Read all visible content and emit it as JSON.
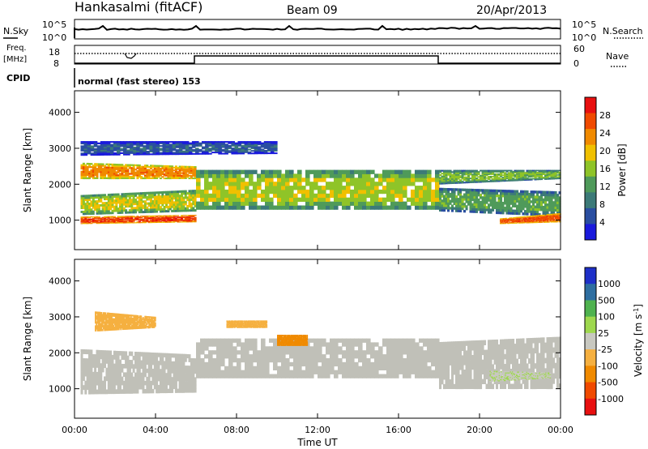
{
  "header": {
    "station": "Hankasalmi (fitACF)",
    "beam": "Beam 09",
    "date": "20/Apr/2013"
  },
  "panels": {
    "nsky": {
      "label": "N.Sky",
      "tick_top": "10^5",
      "tick_bottom": "10^0"
    },
    "nsearch": {
      "label": "N.Search",
      "tick_top": "10^5",
      "tick_bottom": "10^0"
    },
    "freq": {
      "label_line1": "Freq.",
      "label_line2": "[MHz]",
      "tick_top": "18",
      "tick_bottom": "8"
    },
    "nave": {
      "label": "Nave",
      "tick_top": "60",
      "tick_bottom": "0"
    },
    "cpid": {
      "label": "CPID",
      "text": "normal (fast stereo) 153"
    }
  },
  "colors": {
    "power": [
      "#1a1adc",
      "#2a4ea0",
      "#3c7a78",
      "#4f9a5a",
      "#8fc428",
      "#f0c000",
      "#f08a00",
      "#f04a00",
      "#e81010"
    ],
    "velocity": [
      "#e81010",
      "#f04a00",
      "#f08a00",
      "#f5b040",
      "#c8c8c0",
      "#9ed84e",
      "#4fb24f",
      "#2e6ea0",
      "#1e30c8"
    ],
    "ground_scatter": "#c0c0b8"
  },
  "icons": {
    "legend_dotted": "dotted-line-icon"
  },
  "chart_data": [
    {
      "type": "heatmap",
      "title": "",
      "xlabel": "Time UT",
      "ylabel": "Slant Range [km]",
      "xlim": [
        "00:00",
        "24:00"
      ],
      "ylim": [
        180,
        4600
      ],
      "x_ticks": [
        "00:00",
        "04:00",
        "08:00",
        "12:00",
        "16:00",
        "20:00",
        "00:00"
      ],
      "y_ticks": [
        "1000",
        "2000",
        "3000",
        "4000"
      ],
      "colorbar": {
        "label": "Power [dB]",
        "ticks": [
          "4",
          "8",
          "12",
          "16",
          "20",
          "24",
          "28"
        ],
        "range": [
          0,
          30
        ]
      },
      "bands": [
        {
          "t": [
            0.3,
            6.0
          ],
          "r_lo": [
            900,
            950
          ],
          "r_hi": [
            1100,
            1150
          ],
          "value": 26
        },
        {
          "t": [
            0.3,
            6.0
          ],
          "r_lo": [
            1150,
            1250
          ],
          "r_hi": [
            1700,
            1850
          ],
          "value": 17
        },
        {
          "t": [
            0.3,
            6.0
          ],
          "r_lo": [
            2150,
            2150
          ],
          "r_hi": [
            2600,
            2500
          ],
          "value": 22
        },
        {
          "t": [
            6.0,
            18.0
          ],
          "r_lo": [
            1300,
            1300
          ],
          "r_hi": [
            2400,
            2400
          ],
          "value": 16
        },
        {
          "t": [
            18.0,
            24.0
          ],
          "r_lo": [
            1250,
            1100
          ],
          "r_hi": [
            1900,
            1800
          ],
          "value": 12
        },
        {
          "t": [
            21.0,
            24.0
          ],
          "r_lo": [
            900,
            950
          ],
          "r_hi": [
            1050,
            1200
          ],
          "value": 25
        },
        {
          "t": [
            18.0,
            24.0
          ],
          "r_lo": [
            2000,
            2150
          ],
          "r_hi": [
            2400,
            2400
          ],
          "value": 14
        },
        {
          "t": [
            0.3,
            10.0
          ],
          "r_lo": [
            2800,
            2850
          ],
          "r_hi": [
            3200,
            3200
          ],
          "value": 6
        }
      ]
    },
    {
      "type": "heatmap",
      "title": "",
      "xlabel": "Time UT",
      "ylabel": "Slant Range [km]",
      "xlim": [
        "00:00",
        "24:00"
      ],
      "ylim": [
        180,
        4600
      ],
      "x_ticks": [
        "00:00",
        "04:00",
        "08:00",
        "12:00",
        "16:00",
        "20:00",
        "00:00"
      ],
      "y_ticks": [
        "1000",
        "2000",
        "3000",
        "4000"
      ],
      "colorbar": {
        "label": "Velocity [m s^-1]",
        "ticks": [
          "1000",
          "500",
          "100",
          "25",
          "-25",
          "-100",
          "-500",
          "-1000"
        ],
        "range": [
          -1500,
          1500
        ]
      },
      "bands": [
        {
          "t": [
            0.3,
            6.0
          ],
          "r_lo": [
            850,
            900
          ],
          "r_hi": [
            2100,
            1950
          ],
          "value": 0
        },
        {
          "t": [
            6.0,
            18.0
          ],
          "r_lo": [
            1300,
            1300
          ],
          "r_hi": [
            2400,
            2400
          ],
          "value": 0
        },
        {
          "t": [
            18.0,
            24.0
          ],
          "r_lo": [
            1000,
            1000
          ],
          "r_hi": [
            2300,
            2450
          ],
          "value": 0
        },
        {
          "t": [
            1.0,
            4.0
          ],
          "r_lo": [
            2600,
            2700
          ],
          "r_hi": [
            3150,
            3000
          ],
          "value": -400
        },
        {
          "t": [
            10.0,
            11.5
          ],
          "r_lo": [
            2200,
            2200
          ],
          "r_hi": [
            2500,
            2500
          ],
          "value": -600
        },
        {
          "t": [
            7.5,
            9.5
          ],
          "r_lo": [
            2700,
            2700
          ],
          "r_hi": [
            2900,
            2900
          ],
          "value": -300
        },
        {
          "t": [
            20.5,
            23.5
          ],
          "r_lo": [
            1200,
            1300
          ],
          "r_hi": [
            1500,
            1450
          ],
          "value": 150
        }
      ]
    }
  ]
}
